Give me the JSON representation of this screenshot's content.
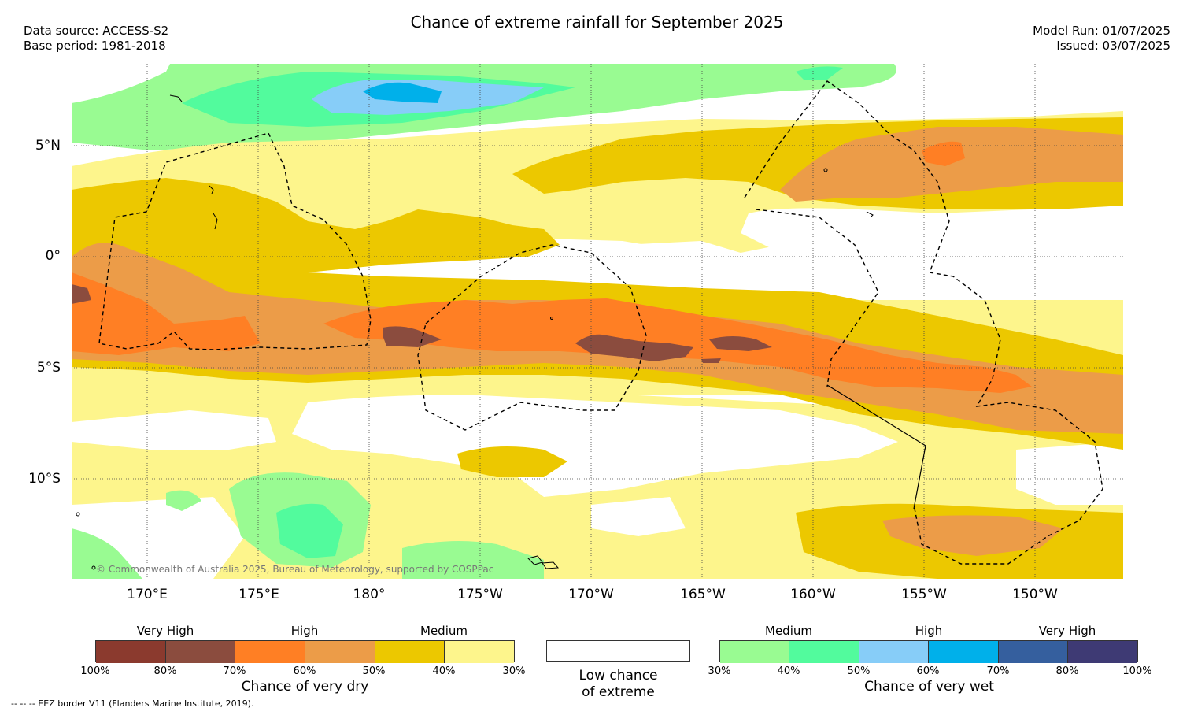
{
  "title": "Chance of extreme rainfall for September 2025",
  "meta": {
    "data_source": "Data source: ACCESS-S2",
    "base_period": "Base period: 1981-2018",
    "model_run": "Model Run: 01/07/2025",
    "issued": "Issued: 03/07/2025"
  },
  "lat_labels": [
    "5°N",
    "0°",
    "5°S",
    "10°S"
  ],
  "lon_labels": [
    "170°E",
    "175°E",
    "180°",
    "175°W",
    "170°W",
    "165°W",
    "160°W",
    "155°W",
    "150°W"
  ],
  "copyright": "© Commonwealth of Australia 2025, Bureau of Meteorology, supported by COSPPac",
  "legend": {
    "dry": {
      "headings": [
        "Very High",
        "High",
        "Medium"
      ],
      "ticks": [
        "100%",
        "80%",
        "70%",
        "60%",
        "50%",
        "40%",
        "30%"
      ],
      "caption": "Chance of very dry",
      "colors": [
        "#8b3a2e",
        "#8b4c3e",
        "#ff7f24",
        "#ec9c48",
        "#ecc800",
        "#fdf58c"
      ]
    },
    "low": {
      "caption_line1": "Low chance",
      "caption_line2": "of extreme"
    },
    "wet": {
      "headings": [
        "Medium",
        "High",
        "Very High"
      ],
      "ticks": [
        "30%",
        "40%",
        "50%",
        "60%",
        "70%",
        "80%",
        "100%"
      ],
      "caption": "Chance of very wet",
      "colors": [
        "#99fb92",
        "#52fb9d",
        "#87cdf8",
        "#00b0ea",
        "#355f9e",
        "#3e3a74"
      ]
    }
  },
  "footnote": "-- -- -- EEZ border V11 (Flanders Marine Institute, 2019)."
}
